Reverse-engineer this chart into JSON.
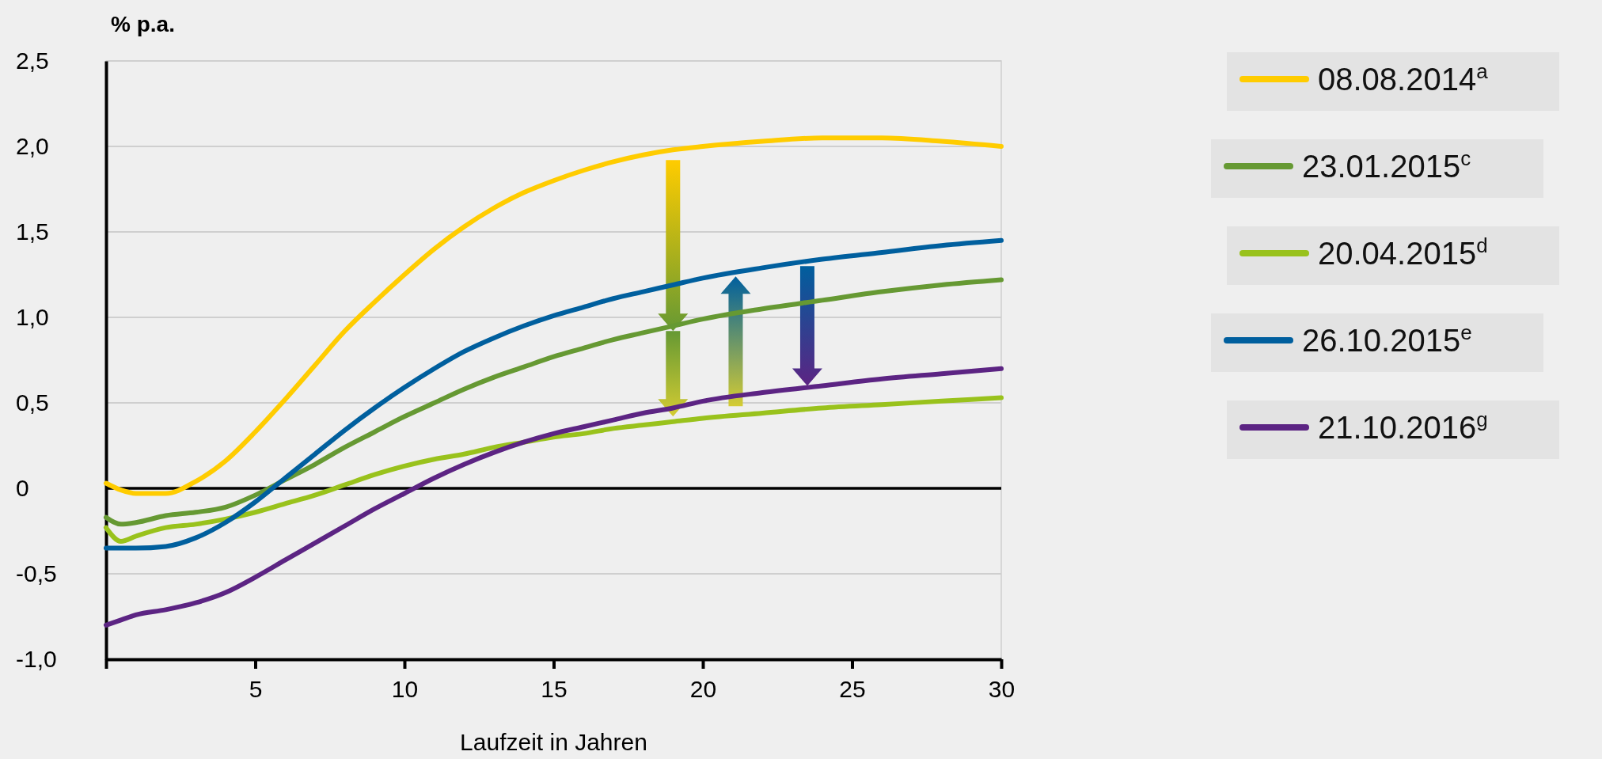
{
  "chart_data": {
    "type": "line",
    "xlabel": "Laufzeit in Jahren",
    "ylabel": "% p.a.",
    "xlim": [
      0,
      30
    ],
    "ylim": [
      -1,
      2.5
    ],
    "xticks": [
      {
        "value": 0,
        "label": null
      },
      5,
      10,
      15,
      20,
      25,
      30
    ],
    "yticks": [
      {
        "value": -1,
        "label": "-1,0"
      },
      {
        "value": -0.5,
        "label": "-0,5"
      },
      0,
      {
        "value": 0.5,
        "label": "0,5"
      },
      {
        "value": 1,
        "label": "1,0"
      },
      {
        "value": 1.5,
        "label": "1,5"
      },
      {
        "value": 2,
        "label": "2,0"
      },
      {
        "value": 2.5,
        "label": "2,5"
      }
    ],
    "grid": "y",
    "legend": "right",
    "marker": "none",
    "line_style": "solid",
    "x": [
      0,
      0.5,
      1,
      2,
      3,
      4,
      5,
      6,
      7,
      8,
      9,
      10,
      11,
      12,
      13,
      14,
      15,
      16,
      17,
      18,
      19,
      20,
      22,
      24,
      26,
      28,
      30
    ],
    "series": [
      {
        "name": "08.08.2014$^{a}$",
        "color": "#ffcc00",
        "values": [
          0.03,
          -0.01,
          -0.03,
          -0.03,
          0.04,
          0.16,
          0.33,
          0.52,
          0.72,
          0.92,
          1.09,
          1.25,
          1.4,
          1.53,
          1.64,
          1.73,
          1.8,
          1.86,
          1.91,
          1.95,
          1.98,
          2.0,
          2.03,
          2.05,
          2.05,
          2.03,
          2.0
        ]
      },
      {
        "name": "23.01.2015$^{c}$",
        "color": "#669933",
        "values": [
          -0.17,
          -0.21,
          -0.2,
          -0.16,
          -0.14,
          -0.11,
          -0.04,
          0.05,
          0.14,
          0.24,
          0.33,
          0.42,
          0.5,
          0.58,
          0.65,
          0.71,
          0.77,
          0.82,
          0.87,
          0.91,
          0.95,
          0.99,
          1.05,
          1.1,
          1.15,
          1.19,
          1.22
        ]
      },
      {
        "name": "20.04.2015$^{d}$",
        "color": "#99c21c",
        "values": [
          -0.23,
          -0.31,
          -0.28,
          -0.23,
          -0.21,
          -0.18,
          -0.14,
          -0.09,
          -0.04,
          0.02,
          0.08,
          0.13,
          0.17,
          0.2,
          0.24,
          0.27,
          0.3,
          0.32,
          0.35,
          0.37,
          0.39,
          0.41,
          0.44,
          0.47,
          0.49,
          0.51,
          0.53
        ]
      },
      {
        "name": "26.10.2015$^{e}$",
        "color": "#005f9e",
        "values": [
          -0.35,
          -0.35,
          -0.35,
          -0.34,
          -0.29,
          -0.2,
          -0.08,
          0.06,
          0.2,
          0.34,
          0.47,
          0.59,
          0.7,
          0.8,
          0.88,
          0.95,
          1.01,
          1.06,
          1.11,
          1.15,
          1.19,
          1.23,
          1.29,
          1.34,
          1.38,
          1.42,
          1.45
        ]
      },
      {
        "name": "21.10.2016$^{g}$",
        "color": "#5c2483",
        "values": [
          -0.8,
          -0.77,
          -0.74,
          -0.71,
          -0.67,
          -0.61,
          -0.52,
          -0.42,
          -0.32,
          -0.22,
          -0.12,
          -0.03,
          0.06,
          0.14,
          0.21,
          0.27,
          0.32,
          0.36,
          0.4,
          0.44,
          0.47,
          0.51,
          0.56,
          0.6,
          0.64,
          0.67,
          0.7
        ]
      }
    ]
  }
}
